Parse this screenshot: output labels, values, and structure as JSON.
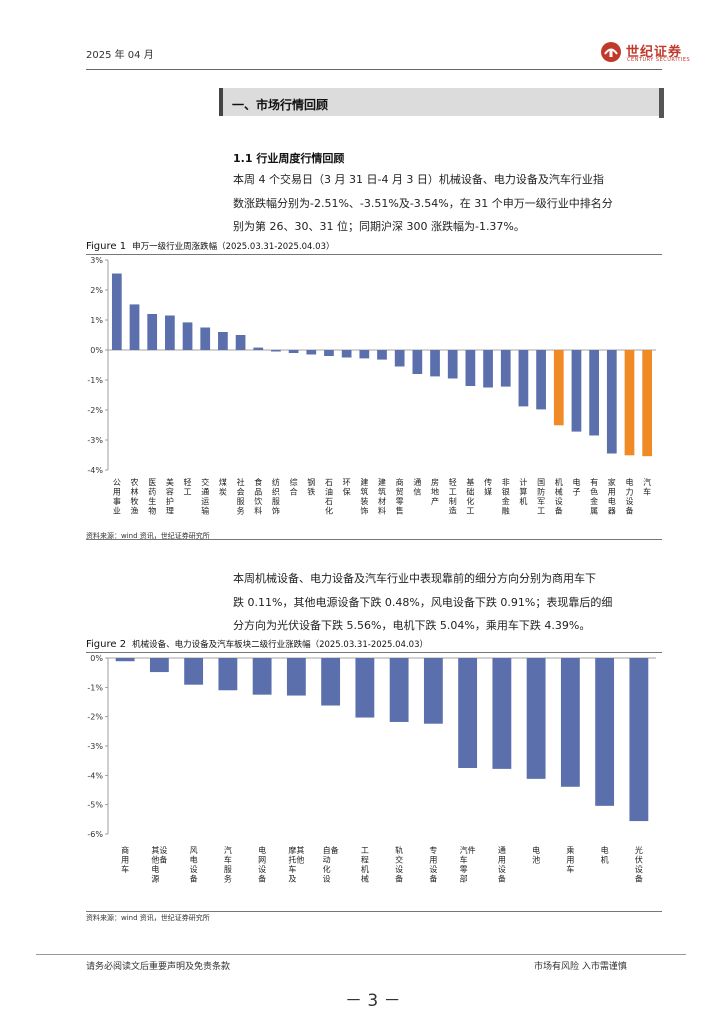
{
  "header": {
    "date": "2025 年 04 月",
    "logo_cn": "世纪证券",
    "logo_en": "CENTURY SECURITIES"
  },
  "section": {
    "title": "一、市场行情回顾",
    "subtitle": "1.1 行业周度行情回顾"
  },
  "para1": [
    "本周 4 个交易日（3 月 31 日-4 月 3 日）机械设备、电力设备及汽车行业指",
    "数涨跌幅分别为-2.51%、-3.51%及-3.54%，在 31 个申万一级行业中排名分",
    "别为第 26、30、31 位；同期沪深 300 涨跌幅为-1.37%。"
  ],
  "para2": [
    "本周机械设备、电力设备及汽车行业中表现靠前的细分方向分别为商用车下",
    "跌 0.11%，其他电源设备下跌 0.48%，风电设备下跌 0.91%；表现靠后的细",
    "分方向为光伏设备下跌 5.56%，电机下跌 5.04%，乘用车下跌 4.39%。"
  ],
  "figure1": {
    "label": "Figure 1",
    "title": "申万一级行业周涨跌幅（2025.03.31-2025.04.03）"
  },
  "figure2": {
    "label": "Figure 2",
    "title": "机械设备、电力设备及汽车板块二级行业涨跌幅（2025.03.31-2025.04.03）"
  },
  "source1": "资料来源：wind 资讯，世纪证券研究所",
  "source2": "资料来源：wind 资讯，世纪证券研究所",
  "footer": {
    "left": "请务必阅读文后重要声明及免责条款",
    "right": "市场有风险 入市需谨慎",
    "page": "－ 3 －"
  },
  "colors": {
    "bar": "#5b6fad",
    "highlight": "#f08a24",
    "accent": "#c0392b"
  },
  "chart_data": [
    {
      "type": "bar",
      "title": "申万一级行业周涨跌幅（2025.03.31-2025.04.03）",
      "ylim": [
        -4,
        3
      ],
      "yticks": [
        3,
        2,
        1,
        0,
        -1,
        -2,
        -3,
        -4
      ],
      "tick_suffix": "%",
      "grid": false,
      "categories": [
        "公用事业",
        "农林牧渔",
        "医药生物",
        "美容护理",
        "轻工",
        "交通运输",
        "煤炭",
        "社会服务",
        "食品饮料",
        "纺织服饰",
        "综合",
        "钢铁",
        "石油石化",
        "环保",
        "建筑装饰",
        "建筑材料",
        "商贸零售",
        "通信",
        "房地产",
        "轻工制造",
        "基础化工",
        "传媒",
        "非银金融",
        "计算机",
        "国防军工",
        "机械设备",
        "电子",
        "有色金属",
        "家用电器",
        "电力设备",
        "汽车"
      ],
      "values": [
        2.55,
        1.52,
        1.2,
        1.15,
        0.92,
        0.75,
        0.6,
        0.5,
        0.08,
        -0.05,
        -0.1,
        -0.15,
        -0.2,
        -0.25,
        -0.28,
        -0.32,
        -0.55,
        -0.8,
        -0.88,
        -0.95,
        -1.2,
        -1.25,
        -1.22,
        -1.88,
        -1.98,
        -2.51,
        -2.72,
        -2.85,
        -3.45,
        -3.51,
        -3.54
      ],
      "highlight": [
        "机械设备",
        "电力设备",
        "汽车"
      ]
    },
    {
      "type": "bar",
      "title": "机械设备、电力设备及汽车板块二级行业涨跌幅（2025.03.31-2025.04.03）",
      "ylim": [
        -6,
        0
      ],
      "yticks": [
        0,
        -1,
        -2,
        -3,
        -4,
        -5,
        -6
      ],
      "tick_suffix": "%",
      "grid": false,
      "categories": [
        "商用车",
        "其他电源设备",
        "风电设备",
        "汽车服务",
        "电网设备",
        "摩托车及其他",
        "自动化设备",
        "工程机械",
        "轨交设备",
        "专用设备",
        "汽车零部件",
        "通用设备",
        "电池",
        "乘用车",
        "电机",
        "光伏设备"
      ],
      "values": [
        -0.11,
        -0.48,
        -0.91,
        -1.1,
        -1.25,
        -1.28,
        -1.62,
        -2.03,
        -2.18,
        -2.24,
        -3.75,
        -3.78,
        -4.12,
        -4.39,
        -5.04,
        -5.56
      ]
    }
  ]
}
